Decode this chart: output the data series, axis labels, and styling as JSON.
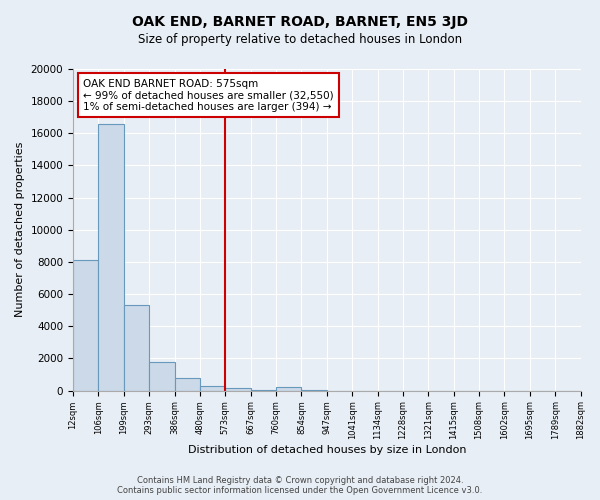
{
  "title": "OAK END, BARNET ROAD, BARNET, EN5 3JD",
  "subtitle": "Size of property relative to detached houses in London",
  "xlabel": "Distribution of detached houses by size in London",
  "ylabel": "Number of detached properties",
  "bar_values": [
    8100,
    16600,
    5300,
    1750,
    800,
    300,
    150,
    50,
    200,
    50,
    0,
    0,
    0,
    0,
    0,
    0,
    0,
    0,
    0,
    0
  ],
  "bin_labels": [
    "12sqm",
    "106sqm",
    "199sqm",
    "293sqm",
    "386sqm",
    "480sqm",
    "573sqm",
    "667sqm",
    "760sqm",
    "854sqm",
    "947sqm",
    "1041sqm",
    "1134sqm",
    "1228sqm",
    "1321sqm",
    "1415sqm",
    "1508sqm",
    "1602sqm",
    "1695sqm",
    "1789sqm",
    "1882sqm"
  ],
  "bar_color": "#ccd9e8",
  "bar_edge_color": "#6699bb",
  "vline_x": 6,
  "vline_color": "#cc0000",
  "annotation_title": "OAK END BARNET ROAD: 575sqm",
  "annotation_line1": "← 99% of detached houses are smaller (32,550)",
  "annotation_line2": "1% of semi-detached houses are larger (394) →",
  "annotation_box_color": "#ffffff",
  "annotation_box_edge": "#cc0000",
  "ylim": [
    0,
    20000
  ],
  "yticks": [
    0,
    2000,
    4000,
    6000,
    8000,
    10000,
    12000,
    14000,
    16000,
    18000,
    20000
  ],
  "bg_color": "#e8eef5",
  "plot_bg_color": "#e8eef5",
  "footer_line1": "Contains HM Land Registry data © Crown copyright and database right 2024.",
  "footer_line2": "Contains public sector information licensed under the Open Government Licence v3.0."
}
